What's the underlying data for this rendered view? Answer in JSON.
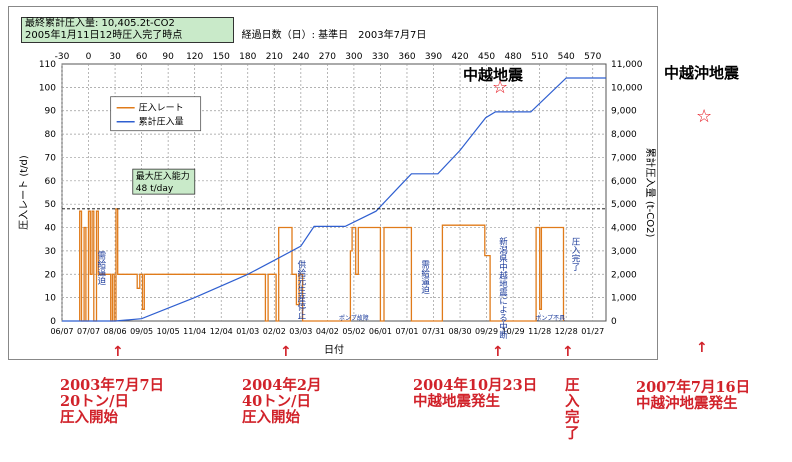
{
  "info_box": {
    "line1": "最終累計圧入量: 10,405.2t-CO2",
    "line2": "2005年1月11日12時圧入完了時点"
  },
  "top_axis_title": "経過日数（日）: 基準日　2003年7月7日",
  "chart_data": {
    "type": "line",
    "xlabel": "日付",
    "ylabel_left": "圧入レート (t/d)",
    "ylabel_right": "累計圧入量 (t-CO2)",
    "top_ticks": [
      "-30",
      "0",
      "30",
      "60",
      "90",
      "120",
      "150",
      "180",
      "210",
      "240",
      "270",
      "300",
      "330",
      "360",
      "390",
      "420",
      "450",
      "480",
      "510",
      "540",
      "570"
    ],
    "bottom_ticks": [
      "06/07",
      "07/07",
      "08/06",
      "09/05",
      "10/05",
      "11/04",
      "12/04",
      "01/03",
      "02/02",
      "03/03",
      "04/02",
      "05/02",
      "06/01",
      "07/01",
      "07/31",
      "08/30",
      "09/29",
      "10/29",
      "11/28",
      "12/28",
      "01/27"
    ],
    "xlim": [
      -30,
      585
    ],
    "ylim_left": [
      0,
      110
    ],
    "ylim_right": [
      0,
      11000
    ],
    "left_ticks": [
      "0",
      "10",
      "20",
      "30",
      "40",
      "50",
      "60",
      "70",
      "80",
      "90",
      "100",
      "110"
    ],
    "right_ticks": [
      "0",
      "1,000",
      "2,000",
      "3,000",
      "4,000",
      "5,000",
      "6,000",
      "7,000",
      "8,000",
      "9,000",
      "10,000",
      "11,000"
    ],
    "grid": true,
    "legend_position": "upper-left",
    "series": [
      {
        "name": "圧入レート",
        "color": "#e07b1a",
        "axis": "left",
        "points": [
          [
            -10,
            0
          ],
          [
            -10,
            47
          ],
          [
            -8,
            47
          ],
          [
            -8,
            0
          ],
          [
            -5,
            0
          ],
          [
            -5,
            40
          ],
          [
            -3,
            40
          ],
          [
            -3,
            0
          ],
          [
            0,
            0
          ],
          [
            0,
            47
          ],
          [
            2,
            47
          ],
          [
            2,
            20
          ],
          [
            4,
            20
          ],
          [
            4,
            47
          ],
          [
            6,
            47
          ],
          [
            6,
            0
          ],
          [
            9,
            0
          ],
          [
            9,
            47
          ],
          [
            11,
            47
          ],
          [
            11,
            20
          ],
          [
            14,
            20
          ],
          [
            14,
            20
          ],
          [
            25,
            20
          ],
          [
            25,
            0
          ],
          [
            27,
            0
          ],
          [
            27,
            20
          ],
          [
            29,
            20
          ],
          [
            29,
            0
          ],
          [
            31,
            0
          ],
          [
            31,
            48
          ],
          [
            33,
            48
          ],
          [
            33,
            20
          ],
          [
            55,
            20
          ],
          [
            55,
            14
          ],
          [
            58,
            14
          ],
          [
            58,
            20
          ],
          [
            61,
            20
          ],
          [
            61,
            5
          ],
          [
            63,
            5
          ],
          [
            63,
            20
          ],
          [
            200,
            20
          ],
          [
            200,
            0
          ],
          [
            203,
            0
          ],
          [
            203,
            20
          ],
          [
            212,
            20
          ],
          [
            212,
            0
          ],
          [
            215,
            0
          ],
          [
            215,
            40
          ],
          [
            230,
            40
          ],
          [
            230,
            20
          ],
          [
            235,
            20
          ],
          [
            235,
            7
          ],
          [
            238,
            7
          ],
          [
            238,
            20
          ],
          [
            242,
            20
          ],
          [
            242,
            0
          ],
          [
            296,
            0
          ],
          [
            296,
            30
          ],
          [
            298,
            30
          ],
          [
            298,
            40
          ],
          [
            302,
            40
          ],
          [
            302,
            20
          ],
          [
            305,
            20
          ],
          [
            305,
            40
          ],
          [
            330,
            40
          ],
          [
            330,
            0
          ],
          [
            334,
            0
          ],
          [
            334,
            40
          ],
          [
            365,
            40
          ],
          [
            365,
            0
          ],
          [
            400,
            0
          ],
          [
            400,
            41
          ],
          [
            448,
            41
          ],
          [
            448,
            28
          ],
          [
            454,
            28
          ],
          [
            454,
            0
          ],
          [
            506,
            0
          ],
          [
            506,
            40
          ],
          [
            510,
            40
          ],
          [
            510,
            5
          ],
          [
            512,
            5
          ],
          [
            512,
            40
          ],
          [
            537,
            40
          ],
          [
            537,
            0
          ]
        ]
      },
      {
        "name": "累計圧入量",
        "color": "#2f5fd0",
        "axis": "right",
        "points": [
          [
            -30,
            0
          ],
          [
            30,
            0
          ],
          [
            60,
            100
          ],
          [
            120,
            1000
          ],
          [
            180,
            2000
          ],
          [
            210,
            2600
          ],
          [
            240,
            3200
          ],
          [
            255,
            4050
          ],
          [
            290,
            4050
          ],
          [
            325,
            4700
          ],
          [
            350,
            5700
          ],
          [
            365,
            6300
          ],
          [
            395,
            6300
          ],
          [
            420,
            7300
          ],
          [
            449,
            8700
          ],
          [
            460,
            8950
          ],
          [
            500,
            8950
          ],
          [
            540,
            10400
          ],
          [
            585,
            10400
          ]
        ]
      }
    ],
    "annotation_box": {
      "line1": "最大圧入能力",
      "line2": "48 t/day"
    },
    "vertical_notes": [
      "需給逼迫",
      "供給元生産停止",
      "需給逼迫",
      "新潟県中越地震による中断",
      "圧入完了"
    ],
    "small_notes": [
      "ポンプ故障",
      "ポンプ不具"
    ]
  },
  "quakes": {
    "chuetsu": "中越地震",
    "chuetsuoki": "中越沖地震",
    "star": "☆"
  },
  "annotations": {
    "a1": [
      "2003年7月7日",
      "20トン/日",
      "圧入開始"
    ],
    "a2": [
      "2004年2月",
      "40トン/日",
      "圧入開始"
    ],
    "a3": [
      "2004年10月23日",
      "中越地震発生"
    ],
    "a4": [
      "圧",
      "入",
      "完",
      "了"
    ],
    "a5": [
      "2007年7月16日",
      "中越沖地震発生"
    ],
    "arrow": "↑"
  }
}
